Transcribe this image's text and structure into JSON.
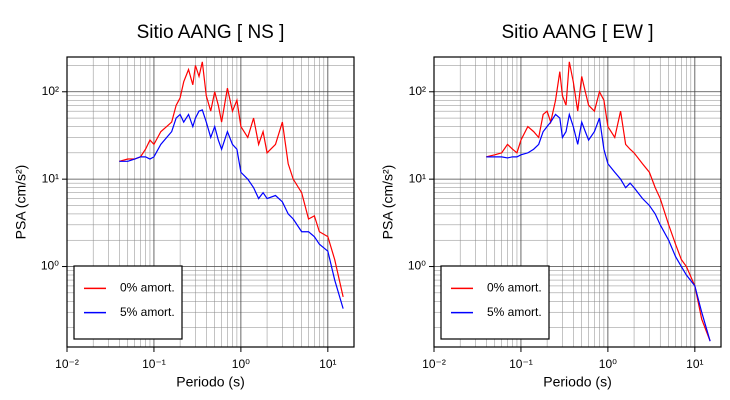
{
  "chart_data": [
    {
      "type": "line",
      "title": "Sitio AANG [ NS ]",
      "x_label": "Periodo (s)",
      "y_label": "PSA (cm/s²)",
      "log_x": true,
      "log_y": true,
      "grid": true,
      "legend": "lower left",
      "xlim": [
        0.01,
        20
      ],
      "ylim": [
        0.12,
        250
      ],
      "xticks": [
        {
          "value": 0.01,
          "label": "10⁻²"
        },
        {
          "value": 0.1,
          "label": "10⁻¹"
        },
        {
          "value": 1,
          "label": "10⁰"
        },
        {
          "value": 10,
          "label": "10¹"
        }
      ],
      "yticks": [
        {
          "value": 1,
          "label": "10⁰"
        },
        {
          "value": 10,
          "label": "10¹"
        },
        {
          "value": 100,
          "label": "10²"
        }
      ],
      "x": [
        0.04,
        0.05,
        0.06,
        0.07,
        0.08,
        0.09,
        0.1,
        0.12,
        0.14,
        0.16,
        0.18,
        0.2,
        0.22,
        0.25,
        0.28,
        0.3,
        0.33,
        0.36,
        0.4,
        0.45,
        0.5,
        0.55,
        0.6,
        0.7,
        0.8,
        0.9,
        1.0,
        1.2,
        1.4,
        1.6,
        1.8,
        2,
        2.5,
        3,
        3.5,
        4,
        5,
        6,
        7,
        8,
        10,
        12,
        15
      ],
      "series": [
        {
          "name": "0% amort.",
          "color": "#ff0000",
          "values": [
            16,
            17,
            17,
            18,
            22,
            28,
            25,
            35,
            40,
            45,
            70,
            85,
            130,
            180,
            120,
            200,
            150,
            220,
            90,
            60,
            100,
            70,
            45,
            110,
            60,
            80,
            40,
            30,
            50,
            25,
            35,
            20,
            25,
            45,
            15,
            10,
            7,
            3.5,
            3.8,
            2.5,
            2.2,
            1.2,
            0.45
          ]
        },
        {
          "name": "5% amort.",
          "color": "#0000ff",
          "values": [
            16,
            16,
            17,
            18,
            18,
            17,
            18,
            25,
            30,
            35,
            50,
            55,
            45,
            55,
            40,
            50,
            60,
            62,
            45,
            30,
            40,
            28,
            22,
            35,
            25,
            22,
            12,
            10,
            8,
            6,
            7,
            6,
            6.5,
            5.5,
            4,
            3.5,
            2.5,
            2.5,
            2.2,
            1.8,
            1.5,
            0.7,
            0.33
          ]
        }
      ]
    },
    {
      "type": "line",
      "title": "Sitio AANG [ EW ]",
      "x_label": "Periodo (s)",
      "y_label": "PSA (cm/s²)",
      "log_x": true,
      "log_y": true,
      "grid": true,
      "legend": "lower left",
      "xlim": [
        0.01,
        20
      ],
      "ylim": [
        0.12,
        250
      ],
      "xticks": [
        {
          "value": 0.01,
          "label": "10⁻²"
        },
        {
          "value": 0.1,
          "label": "10⁻¹"
        },
        {
          "value": 1,
          "label": "10⁰"
        },
        {
          "value": 10,
          "label": "10¹"
        }
      ],
      "yticks": [
        {
          "value": 1,
          "label": "10⁰"
        },
        {
          "value": 10,
          "label": "10¹"
        },
        {
          "value": 100,
          "label": "10²"
        }
      ],
      "x": [
        0.04,
        0.05,
        0.06,
        0.07,
        0.08,
        0.09,
        0.1,
        0.12,
        0.14,
        0.16,
        0.18,
        0.2,
        0.22,
        0.25,
        0.28,
        0.3,
        0.33,
        0.36,
        0.4,
        0.45,
        0.5,
        0.55,
        0.6,
        0.7,
        0.8,
        0.9,
        1.0,
        1.2,
        1.4,
        1.6,
        1.8,
        2,
        2.5,
        3,
        3.5,
        4,
        5,
        6,
        7,
        8,
        10,
        12,
        15
      ],
      "series": [
        {
          "name": "0% amort.",
          "color": "#ff0000",
          "values": [
            18,
            19,
            20,
            25,
            22,
            20,
            28,
            40,
            35,
            30,
            55,
            60,
            45,
            80,
            170,
            90,
            70,
            220,
            130,
            60,
            150,
            100,
            70,
            60,
            100,
            80,
            40,
            30,
            60,
            25,
            22,
            20,
            15,
            12,
            8,
            6,
            3,
            1.8,
            1.2,
            1.0,
            0.6,
            0.25,
            0.14
          ]
        },
        {
          "name": "5% amort.",
          "color": "#0000ff",
          "values": [
            18,
            18,
            18,
            17.5,
            18,
            18,
            19,
            20,
            22,
            25,
            35,
            40,
            45,
            55,
            50,
            30,
            35,
            55,
            40,
            25,
            45,
            35,
            28,
            35,
            50,
            22,
            15,
            12,
            10,
            8,
            9,
            8,
            6,
            5,
            4,
            3,
            2,
            1.3,
            1.0,
            0.8,
            0.6,
            0.3,
            0.14
          ]
        }
      ]
    }
  ]
}
